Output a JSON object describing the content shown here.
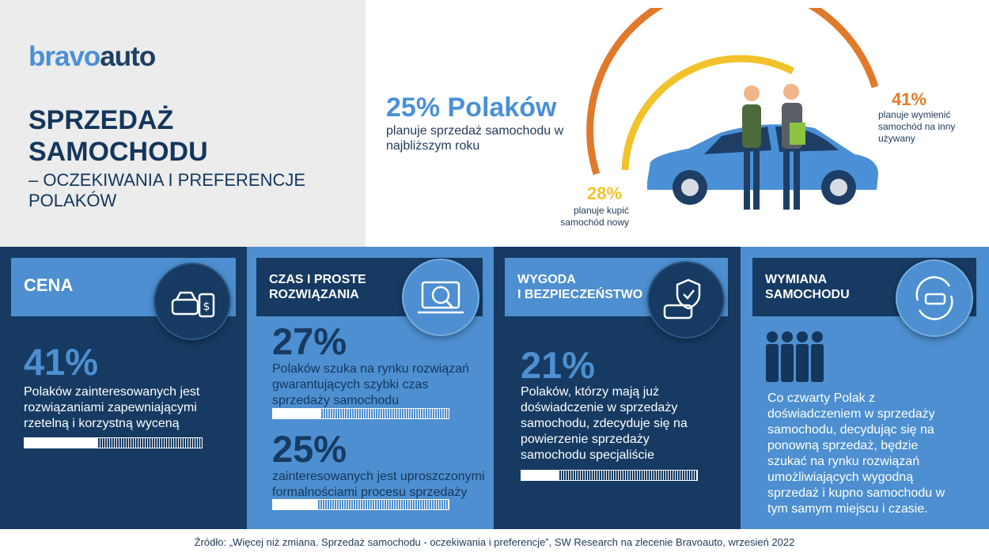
{
  "brand": {
    "part1": "bravo",
    "part2": "auto"
  },
  "header": {
    "title_line1": "SPRZEDAŻ",
    "title_line2": "SAMOCHODU",
    "subtitle": "– OCZEKIWANIA I PREFERENCJE POLAKÓW"
  },
  "hero": {
    "main_pct": "25% Polaków",
    "main_desc": "planuje sprzedaż samochodu w najbliższym roku",
    "used_pct": "41%",
    "used_desc": "planuje wymienić samochód na inny używany",
    "new_pct": "28%",
    "new_desc": "planuje kupić samochód nowy"
  },
  "panels": {
    "cena": {
      "title": "CENA",
      "icon": "car-price-tag-icon",
      "stat": "41%",
      "desc": "Polaków zainteresowanych jest rozwiązaniami zapewniającymi rzetelną i korzystną wyceną",
      "progress": 0.41
    },
    "czas": {
      "title_line1": "CZAS I PROSTE",
      "title_line2": "ROZWIĄZANIA",
      "icon": "car-search-laptop-icon",
      "stat1": "27%",
      "desc1": "Polaków szuka na rynku rozwiązań gwarantujących szybki czas sprzedaży samochodu",
      "progress1": 0.27,
      "stat2": "25%",
      "desc2": "zainteresowanych jest uproszczonymi formalnościami procesu sprzedaży",
      "progress2": 0.25
    },
    "wygoda": {
      "title_line1": "WYGODA",
      "title_line2": "I BEZPIECZEŃSTWO",
      "icon": "car-shield-icon",
      "stat": "21%",
      "desc": "Polaków, którzy mają już doświadczenie w sprzedaży samochodu, zdecyduje się na powierzenie sprzedaży samochodu specjaliście",
      "progress": 0.21
    },
    "wymiana": {
      "title_line1": "WYMIANA",
      "title_line2": "SAMOCHODU",
      "icon": "car-exchange-icon",
      "people_icon": "people-group-icon",
      "desc": "Co czwarty Polak z doświadczeniem w sprzedaży samochodu, decydując się na ponowną sprzedaż, będzie szukać na rynku rozwiązań umożliwiających wygodną sprzedaż i kupno samochodu w tym samym miejscu i czasie."
    }
  },
  "footer": {
    "source": "Źródło: „Więcej niż zmiana. Sprzedaż samochodu - oczekiwania i preferencje”, SW Research na zlecenie Bravoauto, wrzesień 2022"
  },
  "colors": {
    "dark_navy": "#163a62",
    "mid_blue": "#4d8fd0",
    "brand_light": "#4a90d6",
    "orange": "#e07a2b",
    "yellow": "#f2c22a"
  }
}
